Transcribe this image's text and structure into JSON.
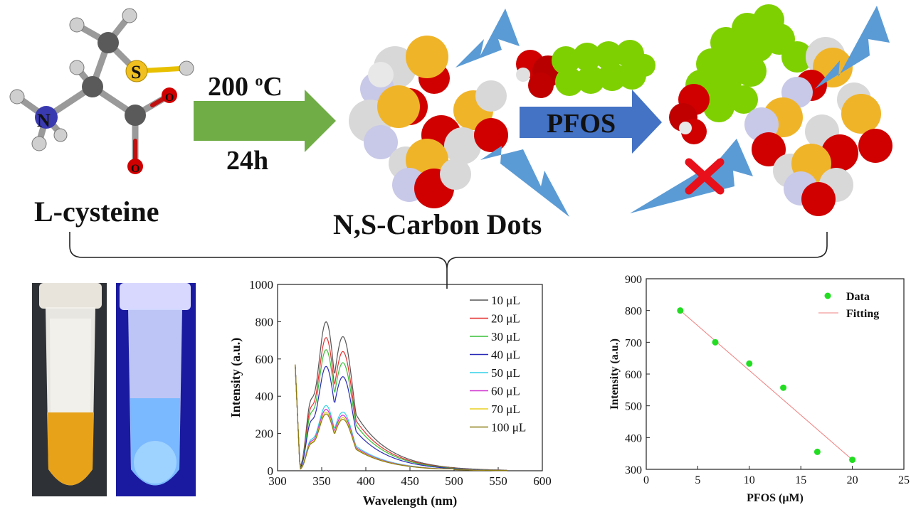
{
  "labels": {
    "molecule_name": "L-cysteine",
    "temp_value": "200 ",
    "temp_sup": "o",
    "temp_unit": "C",
    "time": "24h",
    "product": "N,S-Carbon Dots",
    "reagent": "PFOS",
    "atom_S": "S",
    "atom_N": "N",
    "atom_O1": "O",
    "atom_O2": "O"
  },
  "colors": {
    "arrow_green": "#70ad47",
    "arrow_blue": "#4472c4",
    "bolt_blue": "#5b9bd5",
    "quench_red": "#e8101a",
    "carbon_green": "#7fd000",
    "sulfur_yellow": "#f0b429",
    "oxygen_red": "#d40000",
    "hydrogen_white": "#e0e0e0",
    "nitrogen_blue": "#8a8ad8"
  },
  "photos": [
    {
      "name": "vial-daylight",
      "tint": "#e8a21a"
    },
    {
      "name": "vial-uv",
      "tint": "#7ab8ff"
    }
  ],
  "chart_data": [
    {
      "type": "line",
      "xlabel": "Wavelength (nm)",
      "ylabel": "Intensity (a.u.)",
      "xlim": [
        300,
        600
      ],
      "ylim": [
        0,
        1000
      ],
      "xticks": [
        300,
        350,
        400,
        450,
        500,
        550,
        600
      ],
      "yticks": [
        0,
        200,
        400,
        600,
        800,
        1000
      ],
      "legend_position": "top-right",
      "peak_x": 355,
      "shoulder_x": 374,
      "series": [
        {
          "name": "10 μL",
          "color": "#555555",
          "peak": 800,
          "shoulder": 720
        },
        {
          "name": "20 μL",
          "color": "#e53030",
          "peak": 715,
          "shoulder": 640
        },
        {
          "name": "30 μL",
          "color": "#38c038",
          "peak": 650,
          "shoulder": 580
        },
        {
          "name": "40 μL",
          "color": "#2a2ab8",
          "peak": 560,
          "shoulder": 505
        },
        {
          "name": "50 μL",
          "color": "#30d0e8",
          "peak": 350,
          "shoulder": 315
        },
        {
          "name": "60 μL",
          "color": "#d030d0",
          "peak": 330,
          "shoulder": 298
        },
        {
          "name": "70 μL",
          "color": "#e8d020",
          "peak": 315,
          "shoulder": 285
        },
        {
          "name": "100 μL",
          "color": "#8a7a10",
          "peak": 305,
          "shoulder": 276
        }
      ]
    },
    {
      "type": "scatter",
      "xlabel": "PFOS (μM)",
      "ylabel": "Intensity (a.u.)",
      "xlim": [
        0,
        25
      ],
      "ylim": [
        300,
        900
      ],
      "xticks": [
        0,
        5,
        10,
        15,
        20,
        25
      ],
      "yticks": [
        300,
        400,
        500,
        600,
        700,
        800,
        900
      ],
      "legend_position": "top-right",
      "x": [
        3.3,
        6.7,
        10,
        13.3,
        16.6,
        20
      ],
      "y": [
        800,
        700,
        633,
        557,
        355,
        330
      ],
      "series": [
        {
          "name": "Data",
          "color": "#22dd22"
        },
        {
          "name": "Fitting",
          "color": "#f08080",
          "fit": [
            [
              3.3,
              800
            ],
            [
              20,
              330
            ]
          ]
        }
      ]
    }
  ]
}
